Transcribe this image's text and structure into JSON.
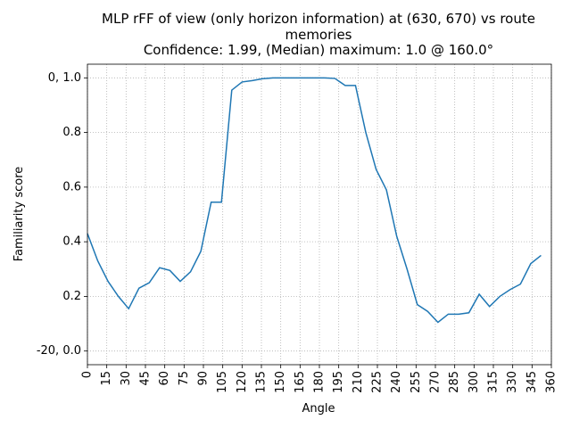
{
  "chart_data": {
    "type": "line",
    "title": [
      "MLP rFF of view (only horizon information) at (630, 670) vs route",
      "memories",
      "Confidence: 1.99, (Median) maximum: 1.0 @ 160.0°"
    ],
    "xlabel": "Angle",
    "ylabel": "Familiarity score",
    "x": [
      0,
      8,
      16,
      24,
      32,
      40,
      48,
      56,
      64,
      72,
      80,
      88,
      96,
      104,
      112,
      120,
      128,
      136,
      144,
      152,
      160,
      168,
      176,
      184,
      192,
      200,
      208,
      216,
      224,
      232,
      240,
      248,
      256,
      264,
      272,
      280,
      288,
      296,
      304,
      312,
      320,
      328,
      336,
      344,
      352
    ],
    "series": [
      {
        "color": "#1f77b4",
        "values": [
          0.43,
          0.33,
          0.255,
          0.2,
          0.155,
          0.23,
          0.25,
          0.305,
          0.295,
          0.255,
          0.29,
          0.365,
          0.545,
          0.545,
          0.955,
          0.985,
          0.99,
          0.997,
          1.0,
          1.0,
          1.0,
          1.0,
          1.0,
          1.0,
          0.998,
          0.972,
          0.972,
          0.8,
          0.665,
          0.59,
          0.42,
          0.3,
          0.17,
          0.145,
          0.105,
          0.135,
          0.135,
          0.14,
          0.208,
          0.163,
          0.2,
          0.225,
          0.245,
          0.32,
          0.35
        ]
      }
    ],
    "xlim": [
      0,
      360
    ],
    "ylim": [
      -0.05,
      1.05
    ],
    "xticks": [
      0,
      15,
      30,
      45,
      60,
      75,
      90,
      105,
      120,
      135,
      150,
      165,
      180,
      195,
      210,
      225,
      240,
      255,
      270,
      285,
      300,
      315,
      330,
      345,
      360
    ],
    "yticks": [
      {
        "value": 0.0,
        "label": "-20, 0.0"
      },
      {
        "value": 0.2,
        "label": "0.2"
      },
      {
        "value": 0.4,
        "label": "0.4"
      },
      {
        "value": 0.6,
        "label": "0.6"
      },
      {
        "value": 0.8,
        "label": "0.8"
      },
      {
        "value": 1.0,
        "label": "0, 1.0"
      }
    ],
    "grid": true
  }
}
